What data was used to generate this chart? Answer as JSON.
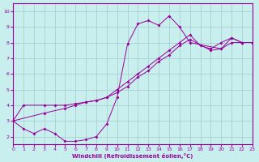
{
  "xlabel": "Windchill (Refroidissement éolien,°C)",
  "xlim": [
    0,
    23
  ],
  "ylim": [
    1.5,
    10.5
  ],
  "yticks": [
    2,
    3,
    4,
    5,
    6,
    7,
    8,
    9,
    10
  ],
  "xticks": [
    0,
    1,
    2,
    3,
    4,
    5,
    6,
    7,
    8,
    9,
    10,
    11,
    12,
    13,
    14,
    15,
    16,
    17,
    18,
    19,
    20,
    21,
    22,
    23
  ],
  "bg_color": "#c8eeee",
  "line_color": "#990099",
  "grid_color": "#a0cccc",
  "line1_x": [
    0,
    1,
    3,
    4,
    5,
    6,
    7,
    8,
    9,
    10,
    11,
    12,
    13,
    14,
    15,
    16,
    17,
    18,
    19,
    20,
    21,
    22,
    23
  ],
  "line1_y": [
    3.0,
    4.0,
    4.0,
    4.0,
    4.0,
    4.1,
    4.2,
    4.3,
    4.5,
    5.0,
    5.5,
    6.0,
    6.5,
    7.0,
    7.5,
    8.0,
    8.5,
    7.8,
    7.6,
    8.0,
    8.3,
    8.0,
    8.0
  ],
  "line2_x": [
    0,
    1,
    2,
    3,
    4,
    5,
    6,
    7,
    8,
    9,
    10,
    11,
    12,
    13,
    14,
    15,
    16,
    17,
    20,
    21,
    22,
    23
  ],
  "line2_y": [
    3.0,
    2.5,
    2.2,
    2.5,
    2.2,
    1.7,
    1.7,
    1.8,
    2.0,
    2.8,
    4.5,
    7.9,
    9.2,
    9.4,
    9.1,
    9.7,
    9.0,
    8.0,
    7.6,
    8.3,
    8.0,
    8.0
  ],
  "line3_x": [
    0,
    3,
    5,
    6,
    7,
    8,
    9,
    10,
    11,
    12,
    13,
    14,
    15,
    16,
    17,
    19,
    20,
    21,
    22,
    23
  ],
  "line3_y": [
    3.0,
    3.5,
    3.8,
    4.0,
    4.2,
    4.3,
    4.5,
    4.8,
    5.2,
    5.8,
    6.2,
    6.8,
    7.2,
    7.8,
    8.2,
    7.5,
    7.6,
    8.0,
    8.0,
    8.0
  ]
}
